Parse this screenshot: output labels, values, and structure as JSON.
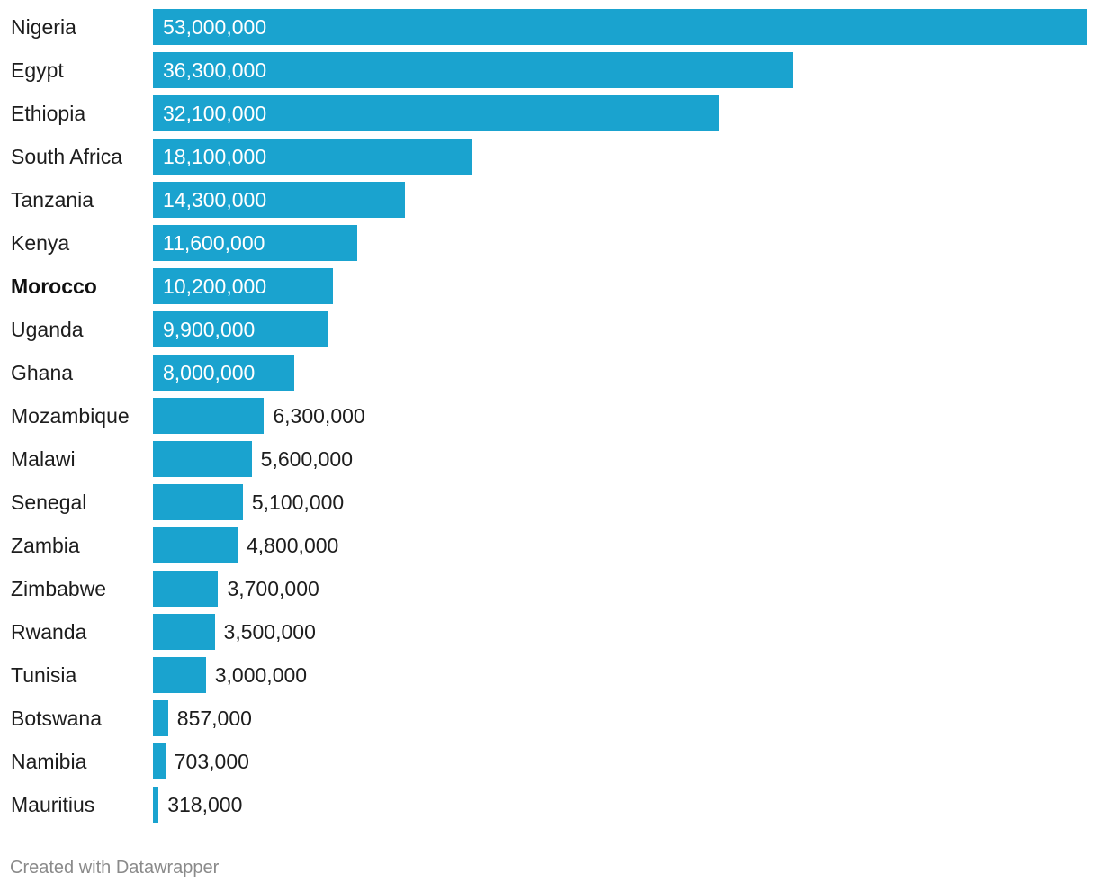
{
  "chart_data": {
    "type": "bar",
    "orientation": "horizontal",
    "categories": [
      "Nigeria",
      "Egypt",
      "Ethiopia",
      "South Africa",
      "Tanzania",
      "Kenya",
      "Morocco",
      "Uganda",
      "Ghana",
      "Mozambique",
      "Malawi",
      "Senegal",
      "Zambia",
      "Zimbabwe",
      "Rwanda",
      "Tunisia",
      "Botswana",
      "Namibia",
      "Mauritius"
    ],
    "values": [
      53000000,
      36300000,
      32100000,
      18100000,
      14300000,
      11600000,
      10200000,
      9900000,
      8000000,
      6300000,
      5600000,
      5100000,
      4800000,
      3700000,
      3500000,
      3000000,
      857000,
      703000,
      318000
    ],
    "value_labels": [
      "53,000,000",
      "36,300,000",
      "32,100,000",
      "18,100,000",
      "14,300,000",
      "11,600,000",
      "10,200,000",
      "9,900,000",
      "8,000,000",
      "6,300,000",
      "5,600,000",
      "5,100,000",
      "4,800,000",
      "3,700,000",
      "3,500,000",
      "3,000,000",
      "857,000",
      "703,000",
      "318,000"
    ],
    "highlighted": "Morocco",
    "xlim": [
      0,
      53000000
    ],
    "bar_color": "#1aa3cf",
    "grid": false,
    "legend": "none"
  },
  "footer": {
    "credit": "Created with Datawrapper"
  }
}
